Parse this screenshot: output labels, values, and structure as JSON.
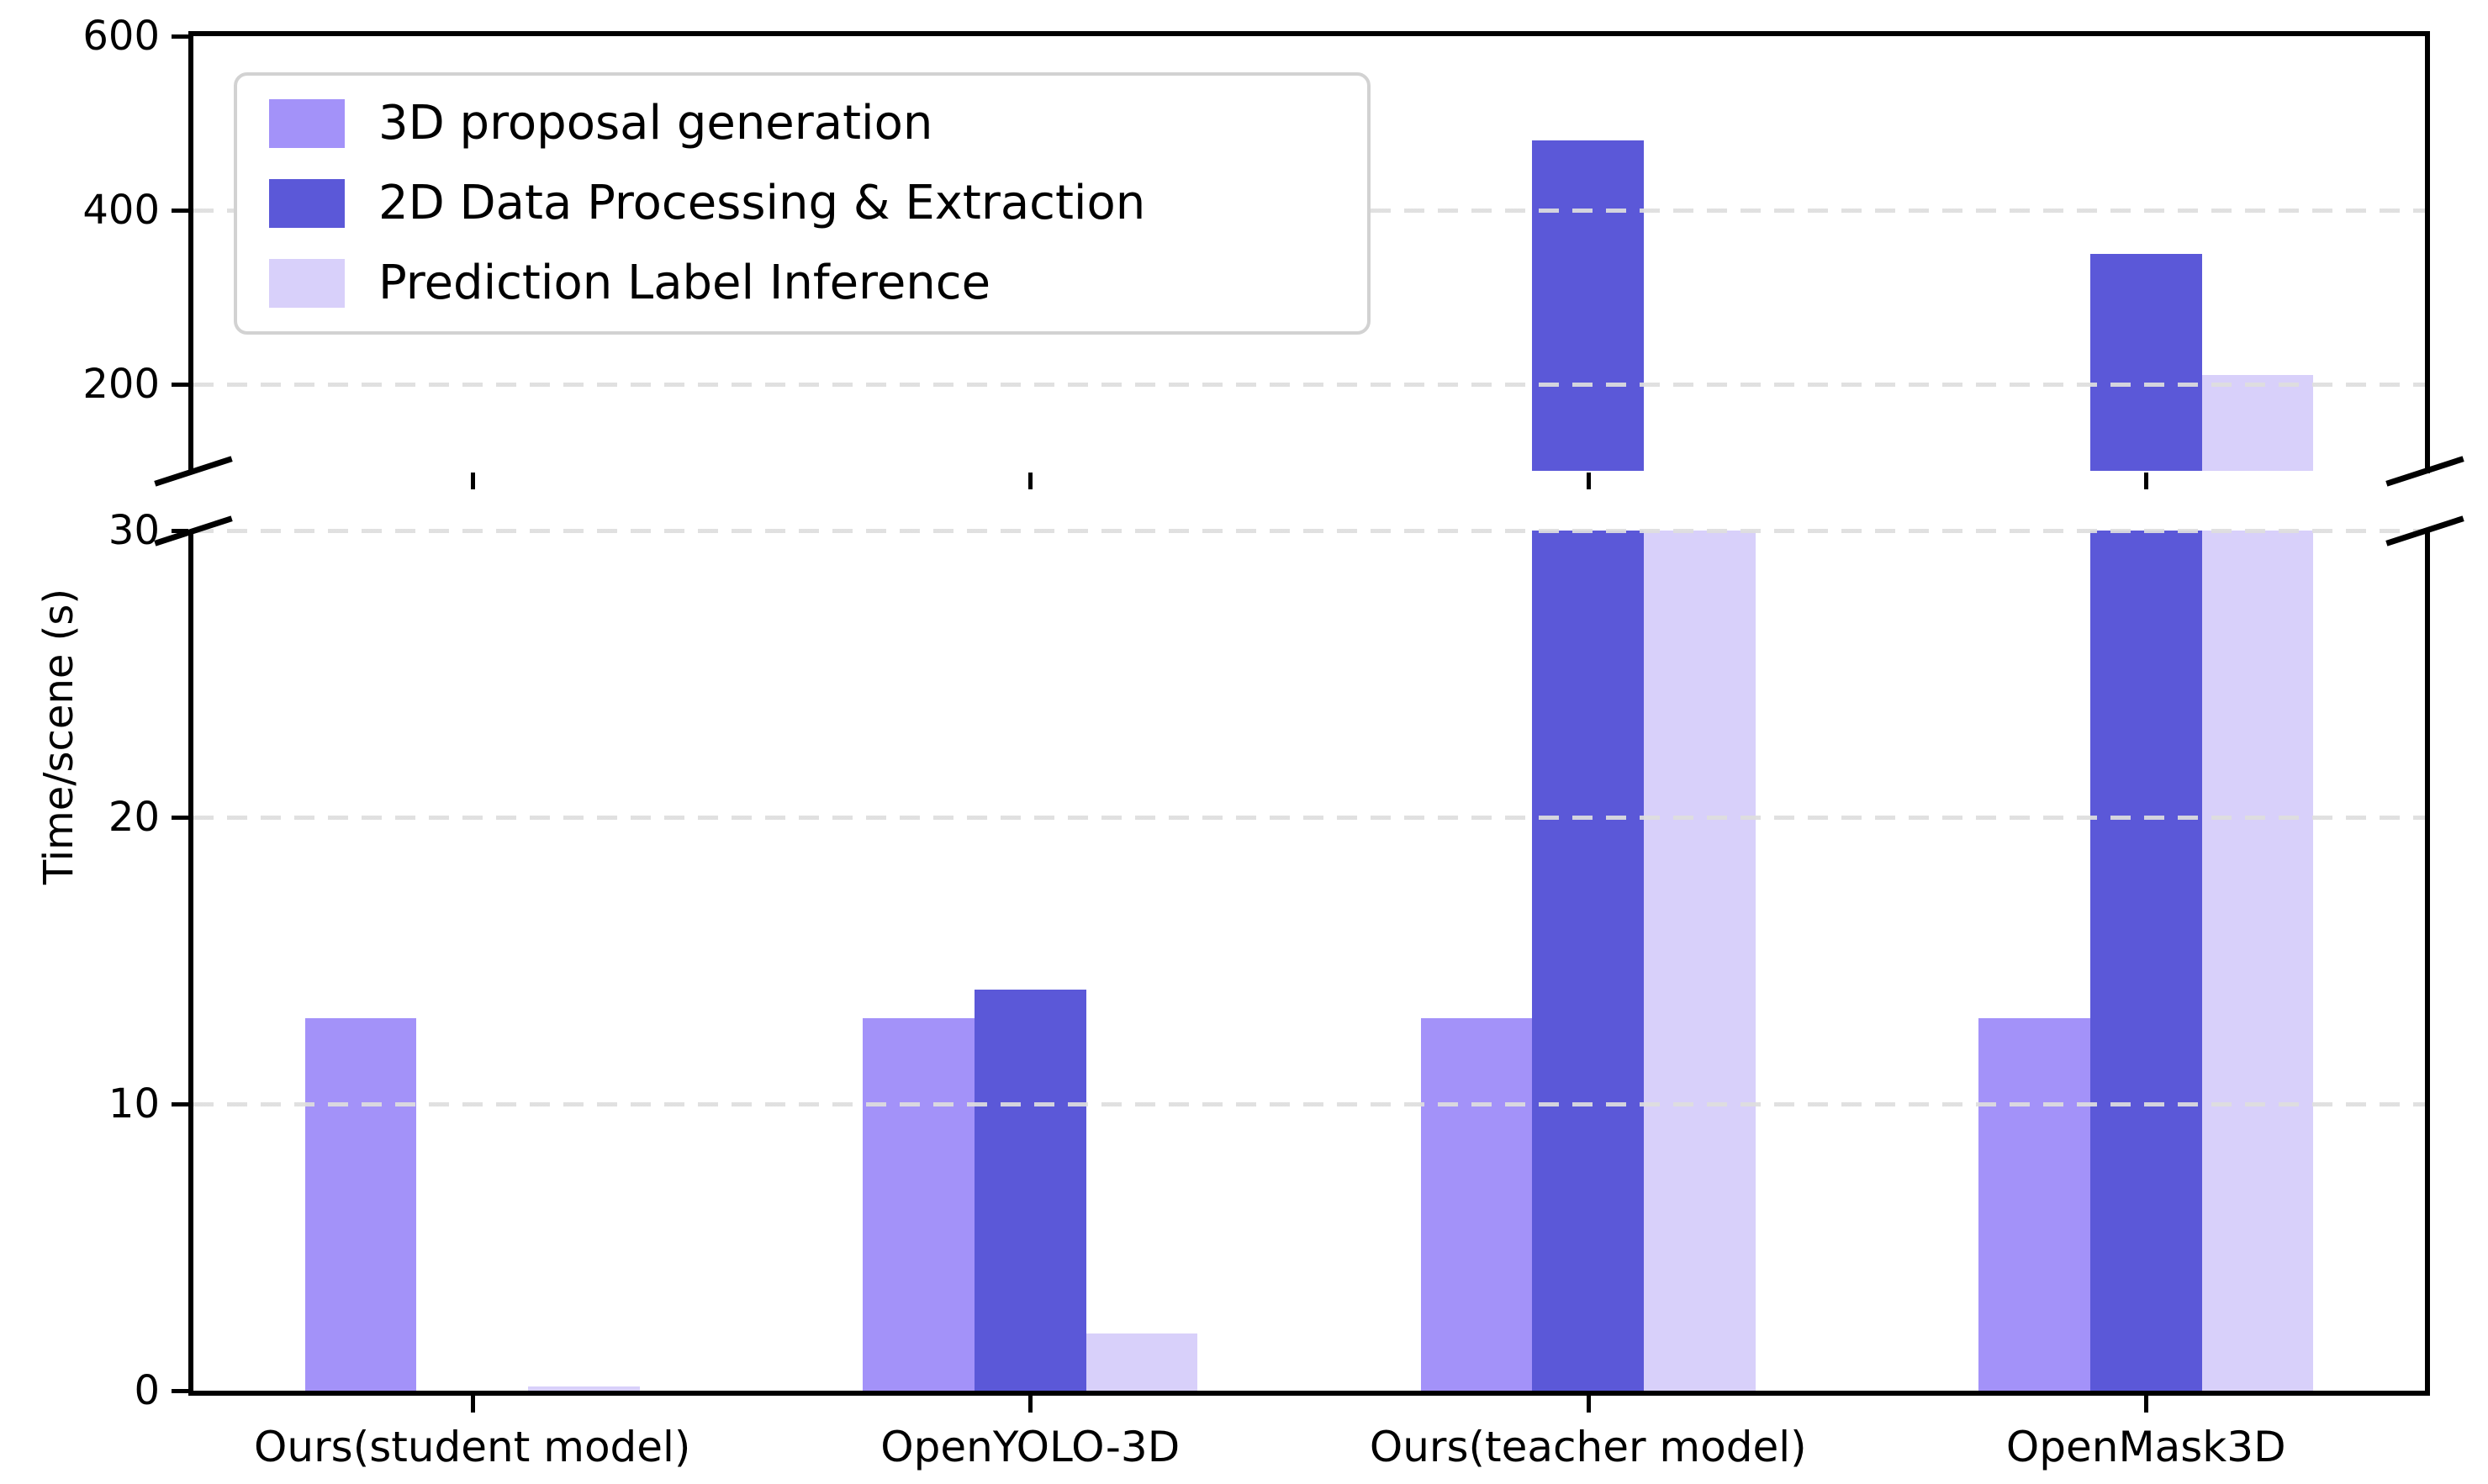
{
  "figure": {
    "y_axis_label": "Time/scene (s)",
    "background_color": "#ffffff",
    "spine_color": "#000000",
    "gridline_color": "#dedede"
  },
  "legend": {
    "position": "upper left",
    "items": [
      {
        "label": "3D proposal generation",
        "color": "#a392f9"
      },
      {
        "label": "2D Data Processing & Extraction",
        "color": "#5b58d8"
      },
      {
        "label": "Prediction Label Inference",
        "color": "#d8d0fa"
      }
    ]
  },
  "chart_data": {
    "type": "bar",
    "title": "",
    "xlabel": "",
    "ylabel": "Time/scene (s)",
    "categories": [
      "Ours(student model)",
      "OpenYOLO-3D",
      "Ours(teacher model)",
      "OpenMask3D"
    ],
    "series": [
      {
        "name": "3D proposal generation",
        "color": "#a392f9",
        "values": [
          13,
          13,
          13,
          13
        ]
      },
      {
        "name": "2D Data Processing & Extraction",
        "color": "#5b58d8",
        "values": [
          0,
          14,
          480,
          350
        ]
      },
      {
        "name": "Prediction Label Inference",
        "color": "#d8d0fa",
        "values": [
          0.15,
          2,
          60,
          210
        ]
      }
    ],
    "broken_y_axis": {
      "top_panel": {
        "ylim": [
          100,
          600
        ],
        "ticks": [
          600,
          400,
          200
        ]
      },
      "bottom_panel": {
        "ylim": [
          0,
          30
        ],
        "ticks": [
          30,
          20,
          10,
          0
        ]
      }
    },
    "grid": "dashed horizontal gridlines at y ticks",
    "legend_position": "upper left",
    "bar_group_width_fraction": 0.2,
    "notes": "Broken y-axis. Bars taller than 30 s are clipped at the break. Values estimated from gridlines: teacher 2D processing ≈480 s, OpenMask3D 2D processing ≈350 s, OpenMask3D label inference ≈210 s; teacher label inference exceeds 30 s but lies below the upper panel range (exact value hidden by the break); student label inference ≈0.15 s."
  }
}
